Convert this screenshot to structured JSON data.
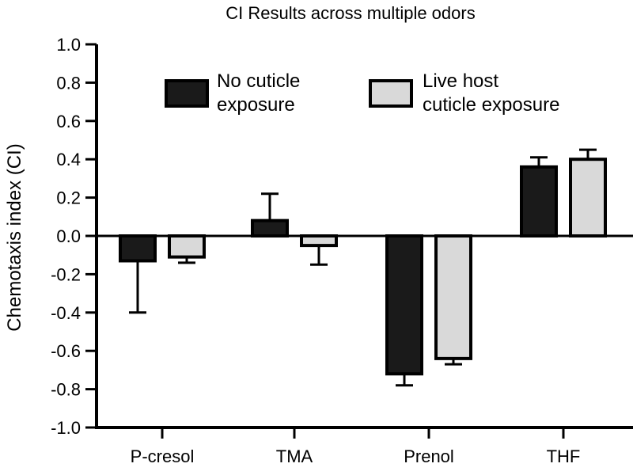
{
  "chart_data": {
    "type": "bar",
    "title": "CI Results across multiple odors",
    "xlabel": "",
    "ylabel": "Chemotaxis index (CI)",
    "ylim": [
      -1.0,
      1.0
    ],
    "yticks": [
      "1.0",
      "0.8",
      "0.6",
      "0.4",
      "0.2",
      "0.0",
      "-0.2",
      "-0.4",
      "-0.6",
      "-0.8",
      "-1.0"
    ],
    "ytick_values": [
      1.0,
      0.8,
      0.6,
      0.4,
      0.2,
      0.0,
      -0.2,
      -0.4,
      -0.6,
      -0.8,
      -1.0
    ],
    "categories": [
      "P-cresol",
      "TMA",
      "Prenol",
      "THF"
    ],
    "grid": false,
    "legend_position": "top",
    "series": [
      {
        "name_lines": [
          "No cuticle",
          "exposure"
        ],
        "color": "#1a1a1a",
        "values": [
          -0.13,
          0.08,
          -0.72,
          0.36
        ],
        "errors": [
          0.27,
          0.14,
          0.06,
          0.05
        ]
      },
      {
        "name_lines": [
          "Live host",
          "cuticle exposure"
        ],
        "color": "#d9d9d9",
        "values": [
          -0.11,
          -0.05,
          -0.64,
          0.4
        ],
        "errors": [
          0.03,
          0.1,
          0.03,
          0.05
        ]
      }
    ]
  }
}
